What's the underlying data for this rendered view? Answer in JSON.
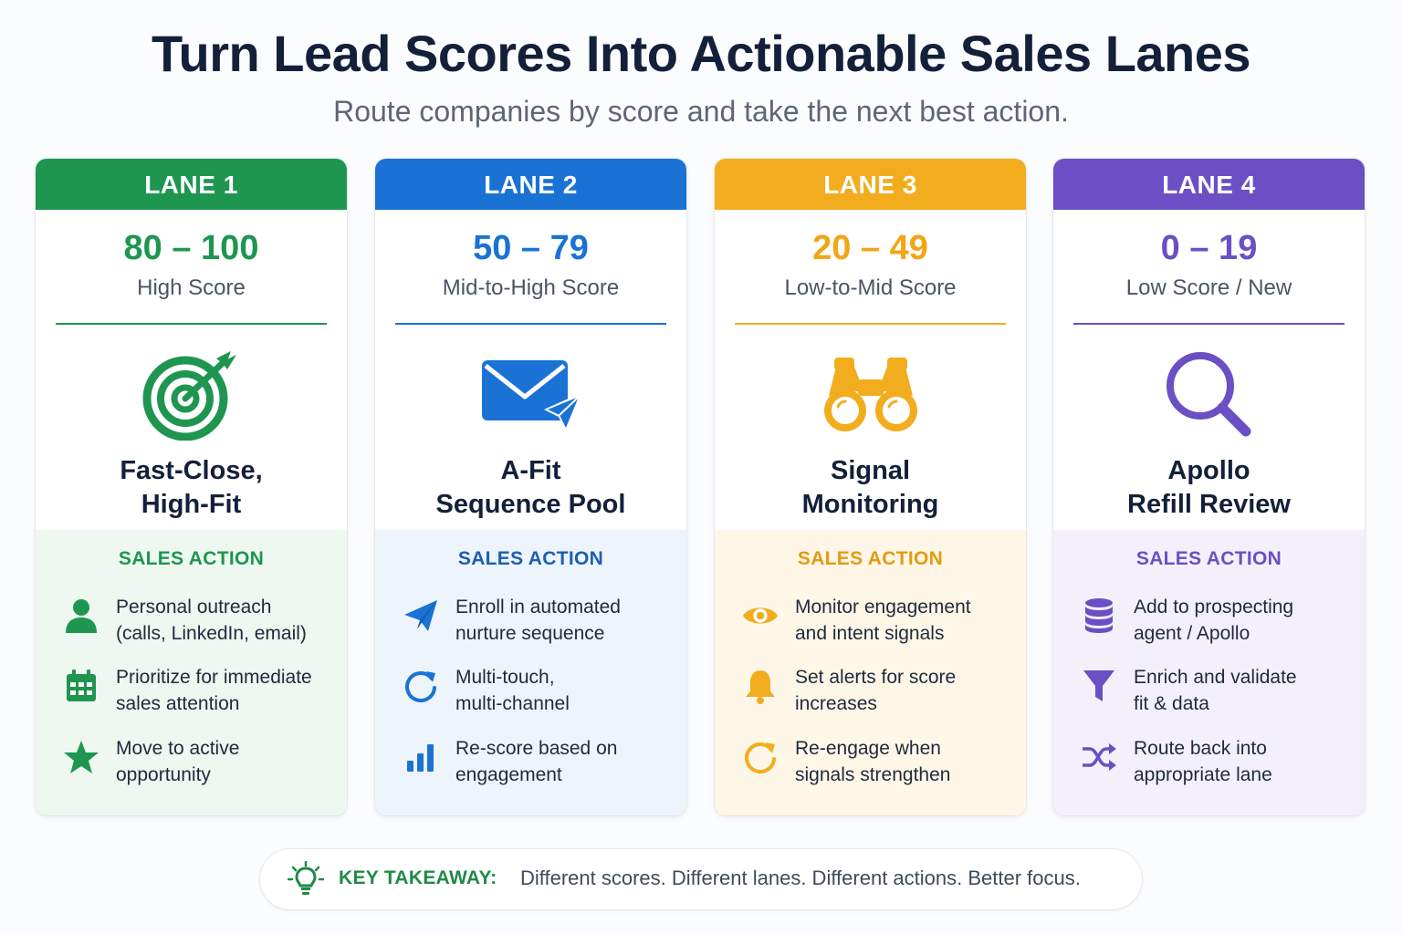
{
  "header": {
    "title": "Turn Lead Scores Into Actionable Sales Lanes",
    "subtitle": "Route companies by score and take the next best action."
  },
  "lanes": [
    {
      "lane_label": "LANE 1",
      "range": "80 – 100",
      "range_label": "High Score",
      "name_line1": "Fast-Close,",
      "name_line2": "High-Fit",
      "icon": "target-icon",
      "color": "#1e9650",
      "panel_bg": "#eef7f0",
      "action_title": "SALES ACTION",
      "actions": [
        {
          "icon": "user-icon",
          "line1": "Personal outreach",
          "line2": "(calls, LinkedIn, email)"
        },
        {
          "icon": "calendar-icon",
          "line1": "Prioritize for immediate",
          "line2": "sales attention"
        },
        {
          "icon": "star-icon",
          "line1": "Move to active",
          "line2": "opportunity"
        }
      ]
    },
    {
      "lane_label": "LANE 2",
      "range": "50 – 79",
      "range_label": "Mid-to-High Score",
      "name_line1": "A-Fit",
      "name_line2": "Sequence Pool",
      "icon": "envelope-send-icon",
      "color": "#1a73d4",
      "panel_bg": "#eef4fc",
      "action_title": "SALES ACTION",
      "actions": [
        {
          "icon": "paper-plane-icon",
          "line1": "Enroll in automated",
          "line2": "nurture sequence"
        },
        {
          "icon": "refresh-icon",
          "line1": "Multi-touch,",
          "line2": "multi-channel"
        },
        {
          "icon": "bar-chart-icon",
          "line1": "Re-score based on",
          "line2": "engagement"
        }
      ]
    },
    {
      "lane_label": "LANE 3",
      "range": "20 – 49",
      "range_label": "Low-to-Mid Score",
      "name_line1": "Signal",
      "name_line2": "Monitoring",
      "icon": "binoculars-icon",
      "color": "#f2ad1e",
      "panel_bg": "#fef7e8",
      "action_title": "SALES ACTION",
      "actions": [
        {
          "icon": "eye-icon",
          "line1": "Monitor engagement",
          "line2": "and intent signals"
        },
        {
          "icon": "bell-icon",
          "line1": "Set alerts for score",
          "line2": "increases"
        },
        {
          "icon": "refresh-icon",
          "line1": "Re-engage when",
          "line2": "signals strengthen"
        }
      ]
    },
    {
      "lane_label": "LANE 4",
      "range": "0 – 19",
      "range_label": "Low Score / New",
      "name_line1": "Apollo",
      "name_line2": "Refill Review",
      "icon": "magnifier-icon",
      "color": "#6b4fc4",
      "panel_bg": "#f3f0fb",
      "action_title": "SALES ACTION",
      "actions": [
        {
          "icon": "database-icon",
          "line1": "Add to prospecting",
          "line2": "agent / Apollo"
        },
        {
          "icon": "funnel-icon",
          "line1": "Enrich and validate",
          "line2": "fit & data"
        },
        {
          "icon": "shuffle-icon",
          "line1": "Route back into",
          "line2": "appropriate lane"
        }
      ]
    }
  ],
  "takeaway": {
    "icon": "lightbulb-icon",
    "label": "KEY TAKEAWAY:",
    "text": "Different scores. Different lanes. Different actions. Better focus."
  }
}
